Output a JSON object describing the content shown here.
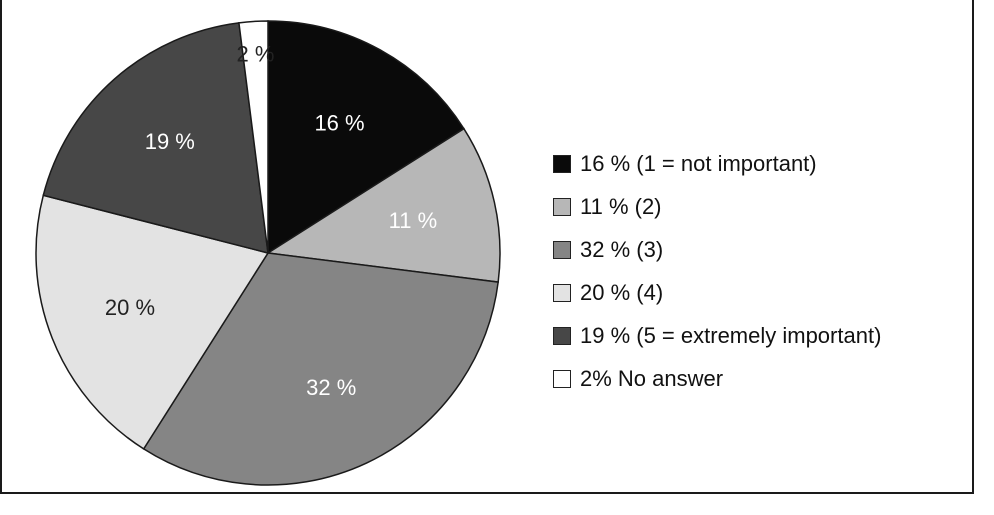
{
  "chart_data": {
    "type": "pie",
    "slices": [
      {
        "value": 16,
        "label": "16 %",
        "legend": "16 % (1 = not important)",
        "color": "#0a0a0a",
        "text_color": "#ffffff"
      },
      {
        "value": 11,
        "label": "11 %",
        "legend": "11 % (2)",
        "color": "#b7b7b7",
        "text_color": "#ffffff"
      },
      {
        "value": 32,
        "label": "32 %",
        "legend": "32 % (3)",
        "color": "#858585",
        "text_color": "#ffffff"
      },
      {
        "value": 20,
        "label": "20 %",
        "legend": "20 % (4)",
        "color": "#e3e3e3",
        "text_color": "#222222"
      },
      {
        "value": 19,
        "label": "19 %",
        "legend": "19 % (5 = extremely important)",
        "color": "#474747",
        "text_color": "#ffffff"
      },
      {
        "value": 2,
        "label": "2 %",
        "legend": "2% No answer",
        "color": "#ffffff",
        "text_color": "#222222"
      }
    ],
    "legend_position": "right",
    "start_angle": "12 o'clock",
    "direction": "clockwise"
  }
}
